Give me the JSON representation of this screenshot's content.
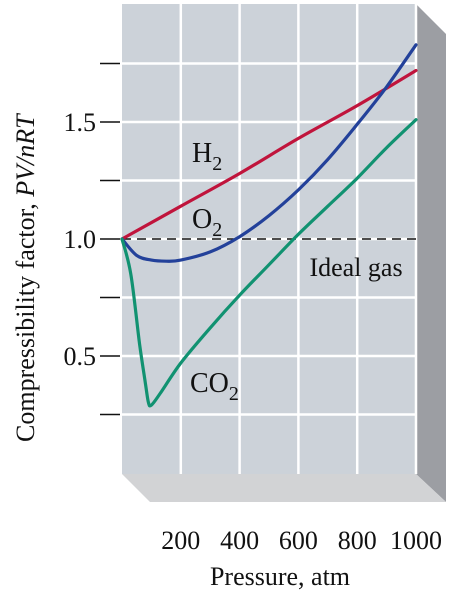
{
  "chart_data": {
    "type": "line",
    "ylabel": "Compressibility factor, ",
    "ylabel_italic": "PV/nRT",
    "xlabel": "Pressure, atm",
    "xlim": [
      0,
      1000
    ],
    "ylim": [
      0,
      1.9
    ],
    "x_ticks": [
      200,
      400,
      600,
      800,
      1000
    ],
    "y_tick_labels": [
      {
        "value": 0.5,
        "label": "0.5"
      },
      {
        "value": 1.0,
        "label": "1.0"
      },
      {
        "value": 1.5,
        "label": "1.5"
      }
    ],
    "y_minor_ticks": [
      0.25,
      0.75,
      1.25,
      1.75
    ],
    "grid": true,
    "reference_line": {
      "y": 1.0,
      "label": "Ideal gas",
      "style": "dashed"
    },
    "series": [
      {
        "name": "H2",
        "label_main": "H",
        "label_sub": "2",
        "color": "#c0143c",
        "x": [
          0,
          200,
          400,
          600,
          800,
          1000
        ],
        "y": [
          1.0,
          1.14,
          1.28,
          1.43,
          1.57,
          1.72
        ]
      },
      {
        "name": "O2",
        "label_main": "O",
        "label_sub": "2",
        "color": "#23419a",
        "x": [
          0,
          50,
          100,
          150,
          200,
          300,
          400,
          500,
          600,
          700,
          800,
          900,
          1000
        ],
        "y": [
          1.0,
          0.93,
          0.91,
          0.905,
          0.91,
          0.945,
          1.01,
          1.1,
          1.21,
          1.34,
          1.49,
          1.65,
          1.83
        ]
      },
      {
        "name": "CO2",
        "label_main": "CO",
        "label_sub": "2",
        "color": "#119271",
        "x": [
          0,
          30,
          60,
          80,
          90,
          100,
          130,
          200,
          300,
          400,
          500,
          600,
          700,
          800,
          900,
          1000
        ],
        "y": [
          1.0,
          0.85,
          0.55,
          0.38,
          0.3,
          0.29,
          0.34,
          0.47,
          0.62,
          0.76,
          0.89,
          1.02,
          1.14,
          1.26,
          1.39,
          1.51
        ]
      }
    ]
  }
}
